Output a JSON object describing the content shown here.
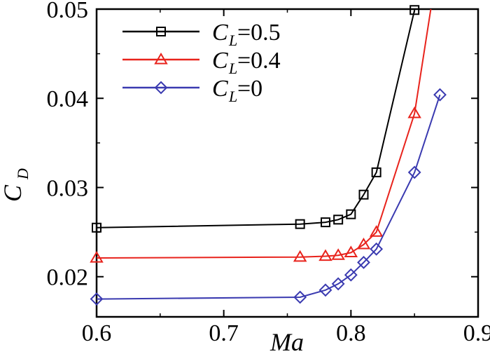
{
  "chart_data": {
    "type": "line",
    "title": "",
    "xlabel": "Ma",
    "ylabel": {
      "main": "C",
      "sub": "D"
    },
    "xlim": [
      0.6,
      0.9
    ],
    "ylim": [
      0.0155,
      0.05
    ],
    "xticks": [
      "0.6",
      "0.7",
      "0.8",
      "0.9"
    ],
    "xtick_values": [
      0.6,
      0.7,
      0.8,
      0.9
    ],
    "yticks": [
      "0.02",
      "0.03",
      "0.04",
      "0.05"
    ],
    "ytick_values": [
      0.02,
      0.03,
      0.04,
      0.05
    ],
    "grid": false,
    "legend_position": "top-left",
    "series": [
      {
        "name": "CL=0.5",
        "label_main": "C",
        "label_sub": "L",
        "label_value": "=0.5",
        "color": "#000000",
        "marker": "square",
        "x": [
          0.6,
          0.76,
          0.78,
          0.79,
          0.8,
          0.81,
          0.82,
          0.85
        ],
        "y": [
          0.0255,
          0.0259,
          0.0261,
          0.0264,
          0.027,
          0.0292,
          0.0317,
          0.0499
        ],
        "curve_extends_to": [
          0.86,
          0.06
        ]
      },
      {
        "name": "CL=0.4",
        "label_main": "C",
        "label_sub": "L",
        "label_value": "=0.4",
        "color": "#e8231c",
        "marker": "triangle",
        "x": [
          0.6,
          0.76,
          0.78,
          0.79,
          0.8,
          0.81,
          0.82,
          0.85
        ],
        "y": [
          0.0221,
          0.0222,
          0.0223,
          0.0224,
          0.0227,
          0.0236,
          0.025,
          0.0383
        ],
        "curve_extends_to": [
          0.865,
          0.052
        ]
      },
      {
        "name": "CL=0",
        "label_main": "C",
        "label_sub": "L",
        "label_value": "=0",
        "color": "#3a3ab0",
        "marker": "diamond",
        "x": [
          0.6,
          0.76,
          0.78,
          0.79,
          0.8,
          0.81,
          0.82,
          0.85,
          0.87
        ],
        "y": [
          0.0175,
          0.0177,
          0.0185,
          0.0192,
          0.0202,
          0.0216,
          0.0231,
          0.0317,
          0.0404
        ]
      }
    ]
  }
}
